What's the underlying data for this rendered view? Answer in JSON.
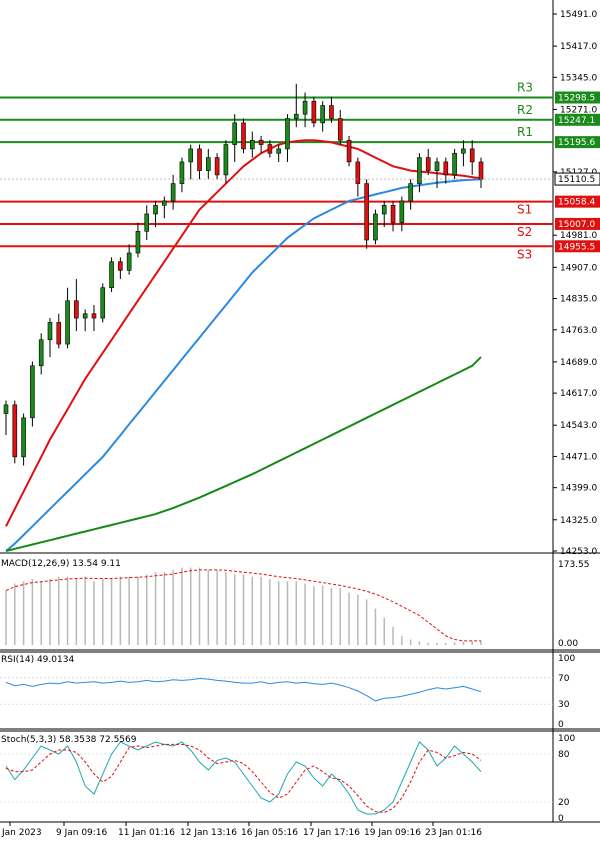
{
  "chart_data": {
    "type": "candlestick",
    "price_axis": {
      "ticks": [
        "15491.0",
        "15417.0",
        "15345.0",
        "15271.0",
        "15127.0",
        "14981.0",
        "14907.0",
        "14835.0",
        "14763.0",
        "14689.0",
        "14617.0",
        "14543.0",
        "14471.0",
        "14399.0",
        "14325.0",
        "14253.0"
      ],
      "ylim": [
        14253.0,
        15491.0
      ],
      "current_price": "15110.5"
    },
    "time_axis": {
      "labels": [
        "Jan 2023",
        "9 Jan 09:16",
        "11 Jan 01:16",
        "12 Jan 13:16",
        "16 Jan 05:16",
        "17 Jan 17:16",
        "19 Jan 09:16",
        "23 Jan 01:16"
      ]
    },
    "levels": [
      {
        "name": "R3",
        "value": 15298.5,
        "label": "15298.5",
        "color": "#1a8a1a"
      },
      {
        "name": "R2",
        "value": 15247.1,
        "label": "15247.1",
        "color": "#1a8a1a"
      },
      {
        "name": "R1",
        "value": 15195.6,
        "label": "15195.6",
        "color": "#1a8a1a"
      },
      {
        "name": "S1",
        "value": 15058.4,
        "label": "15058.4",
        "color": "#e01010"
      },
      {
        "name": "S2",
        "value": 15007.0,
        "label": "15007.0",
        "color": "#e01010"
      },
      {
        "name": "S3",
        "value": 14955.5,
        "label": "14955.5",
        "color": "#e01010"
      }
    ],
    "candles": [
      [
        14570,
        14600,
        14520,
        14590
      ],
      [
        14590,
        14600,
        14455,
        14470
      ],
      [
        14470,
        14570,
        14450,
        14560
      ],
      [
        14560,
        14690,
        14540,
        14680
      ],
      [
        14680,
        14755,
        14660,
        14740
      ],
      [
        14740,
        14790,
        14700,
        14780
      ],
      [
        14780,
        14800,
        14720,
        14730
      ],
      [
        14730,
        14860,
        14720,
        14830
      ],
      [
        14830,
        14880,
        14760,
        14790
      ],
      [
        14790,
        14810,
        14760,
        14800
      ],
      [
        14800,
        14820,
        14760,
        14790
      ],
      [
        14790,
        14870,
        14780,
        14860
      ],
      [
        14860,
        14930,
        14850,
        14920
      ],
      [
        14920,
        14930,
        14880,
        14900
      ],
      [
        14900,
        14960,
        14890,
        14940
      ],
      [
        14940,
        15010,
        14930,
        14990
      ],
      [
        14990,
        15050,
        14970,
        15030
      ],
      [
        15030,
        15060,
        15000,
        15050
      ],
      [
        15050,
        15070,
        15020,
        15060
      ],
      [
        15060,
        15120,
        15040,
        15100
      ],
      [
        15100,
        15160,
        15080,
        15150
      ],
      [
        15150,
        15190,
        15110,
        15180
      ],
      [
        15180,
        15190,
        15110,
        15130
      ],
      [
        15130,
        15180,
        15110,
        15160
      ],
      [
        15160,
        15170,
        15110,
        15120
      ],
      [
        15120,
        15200,
        15100,
        15190
      ],
      [
        15190,
        15260,
        15150,
        15240
      ],
      [
        15240,
        15250,
        15170,
        15180
      ],
      [
        15180,
        15220,
        15160,
        15200
      ],
      [
        15200,
        15210,
        15170,
        15190
      ],
      [
        15190,
        15200,
        15160,
        15170
      ],
      [
        15170,
        15190,
        15150,
        15180
      ],
      [
        15180,
        15260,
        15150,
        15250
      ],
      [
        15250,
        15330,
        15230,
        15260
      ],
      [
        15260,
        15310,
        15230,
        15290
      ],
      [
        15290,
        15300,
        15230,
        15240
      ],
      [
        15240,
        15290,
        15220,
        15280
      ],
      [
        15280,
        15300,
        15240,
        15250
      ],
      [
        15250,
        15270,
        15190,
        15200
      ],
      [
        15200,
        15210,
        15140,
        15150
      ],
      [
        15150,
        15160,
        15070,
        15100
      ],
      [
        15100,
        15110,
        14950,
        14970
      ],
      [
        14970,
        15040,
        14960,
        15030
      ],
      [
        15030,
        15060,
        15000,
        15050
      ],
      [
        15050,
        15060,
        14990,
        15010
      ],
      [
        15010,
        15070,
        14990,
        15060
      ],
      [
        15060,
        15110,
        15040,
        15100
      ],
      [
        15100,
        15170,
        15080,
        15160
      ],
      [
        15160,
        15180,
        15120,
        15130
      ],
      [
        15130,
        15160,
        15090,
        15150
      ],
      [
        15150,
        15160,
        15100,
        15120
      ],
      [
        15120,
        15180,
        15110,
        15170
      ],
      [
        15170,
        15200,
        15140,
        15180
      ],
      [
        15180,
        15200,
        15120,
        15150
      ],
      [
        15150,
        15160,
        15090,
        15110
      ]
    ],
    "moving_averages": [
      {
        "color": "#e01010",
        "values": [
          14310,
          14350,
          14390,
          14430,
          14470,
          14510,
          14545,
          14580,
          14615,
          14650,
          14680,
          14710,
          14740,
          14770,
          14800,
          14830,
          14860,
          14890,
          14920,
          14950,
          14980,
          15010,
          15040,
          15060,
          15080,
          15100,
          15120,
          15140,
          15155,
          15170,
          15180,
          15190,
          15195,
          15198,
          15200,
          15200,
          15198,
          15195,
          15190,
          15185,
          15180,
          15170,
          15160,
          15150,
          15140,
          15135,
          15130,
          15128,
          15126,
          15124,
          15122,
          15120,
          15118,
          15115,
          15112
        ]
      },
      {
        "color": "#2a8ae0",
        "values": [
          14253,
          14270,
          14290,
          14310,
          14330,
          14350,
          14370,
          14390,
          14410,
          14430,
          14450,
          14470,
          14495,
          14520,
          14545,
          14570,
          14595,
          14620,
          14645,
          14670,
          14695,
          14720,
          14745,
          14770,
          14795,
          14820,
          14845,
          14870,
          14895,
          14915,
          14935,
          14955,
          14975,
          14990,
          15005,
          15020,
          15030,
          15040,
          15050,
          15060,
          15065,
          15070,
          15075,
          15080,
          15085,
          15090,
          15093,
          15096,
          15099,
          15102,
          15104,
          15106,
          15108,
          15109,
          15110
        ]
      },
      {
        "color": "#148a14",
        "values": [
          14253,
          14258,
          14263,
          14268,
          14273,
          14278,
          14283,
          14288,
          14293,
          14298,
          14303,
          14308,
          14313,
          14318,
          14323,
          14328,
          14333,
          14338,
          14345,
          14352,
          14360,
          14368,
          14376,
          14385,
          14394,
          14403,
          14412,
          14421,
          14430,
          14440,
          14450,
          14460,
          14470,
          14480,
          14490,
          14500,
          14510,
          14520,
          14530,
          14540,
          14550,
          14560,
          14570,
          14580,
          14590,
          14600,
          14610,
          14620,
          14630,
          14640,
          14650,
          14660,
          14670,
          14680,
          14700
        ]
      }
    ],
    "macd": {
      "label": "MACD(12,26,9) 13.54 9.11",
      "axis_top": "173.55",
      "axis_bottom": "0.00",
      "ylim": [
        0,
        173.55
      ],
      "hist": [
        120,
        135,
        140,
        145,
        140,
        145,
        150,
        150,
        145,
        150,
        140,
        145,
        145,
        150,
        150,
        150,
        155,
        160,
        160,
        165,
        170,
        170,
        170,
        165,
        165,
        160,
        155,
        155,
        150,
        150,
        145,
        140,
        140,
        140,
        135,
        130,
        130,
        125,
        125,
        115,
        110,
        100,
        80,
        60,
        40,
        20,
        12,
        8,
        5,
        5,
        5,
        6,
        7,
        8,
        9
      ],
      "signal": [
        120,
        128,
        133,
        137,
        139,
        141,
        143,
        145,
        146,
        147,
        146,
        146,
        146,
        147,
        148,
        149,
        150,
        152,
        154,
        156,
        160,
        163,
        165,
        165,
        165,
        164,
        162,
        160,
        158,
        156,
        153,
        150,
        148,
        146,
        143,
        140,
        137,
        134,
        131,
        127,
        123,
        118,
        112,
        104,
        95,
        85,
        75,
        65,
        50,
        35,
        20,
        12,
        9,
        9,
        9
      ]
    },
    "rsi": {
      "label": "RSI(14) 49.0134",
      "ticks": [
        "100",
        "70",
        "30",
        "0"
      ],
      "ylim": [
        0,
        100
      ],
      "values": [
        63,
        58,
        60,
        57,
        60,
        62,
        61,
        64,
        62,
        63,
        64,
        62,
        63,
        65,
        63,
        64,
        66,
        64,
        65,
        67,
        66,
        67,
        69,
        68,
        66,
        65,
        63,
        62,
        62,
        64,
        61,
        63,
        64,
        62,
        63,
        61,
        60,
        62,
        59,
        55,
        50,
        43,
        35,
        39,
        40,
        42,
        45,
        48,
        52,
        55,
        53,
        55,
        57,
        53,
        49
      ]
    },
    "stoch": {
      "label": "Stoch(5,3,3) 58.3538 72.5569",
      "ticks": [
        "100",
        "80",
        "20",
        "0"
      ],
      "ylim": [
        0,
        100
      ],
      "k": [
        65,
        48,
        60,
        75,
        90,
        85,
        80,
        90,
        70,
        40,
        30,
        55,
        80,
        95,
        90,
        85,
        90,
        95,
        92,
        90,
        95,
        85,
        70,
        60,
        72,
        75,
        70,
        55,
        40,
        25,
        20,
        30,
        55,
        70,
        65,
        50,
        40,
        55,
        45,
        30,
        10,
        5,
        5,
        10,
        20,
        45,
        70,
        95,
        85,
        65,
        75,
        90,
        80,
        70,
        58
      ],
      "d": [
        62,
        58,
        58,
        60,
        70,
        80,
        85,
        85,
        82,
        70,
        55,
        45,
        52,
        70,
        88,
        90,
        88,
        90,
        92,
        92,
        92,
        90,
        85,
        75,
        68,
        70,
        72,
        68,
        58,
        45,
        32,
        25,
        30,
        45,
        60,
        65,
        58,
        50,
        48,
        40,
        28,
        15,
        8,
        7,
        12,
        25,
        45,
        70,
        85,
        82,
        75,
        78,
        82,
        80,
        72
      ]
    }
  }
}
